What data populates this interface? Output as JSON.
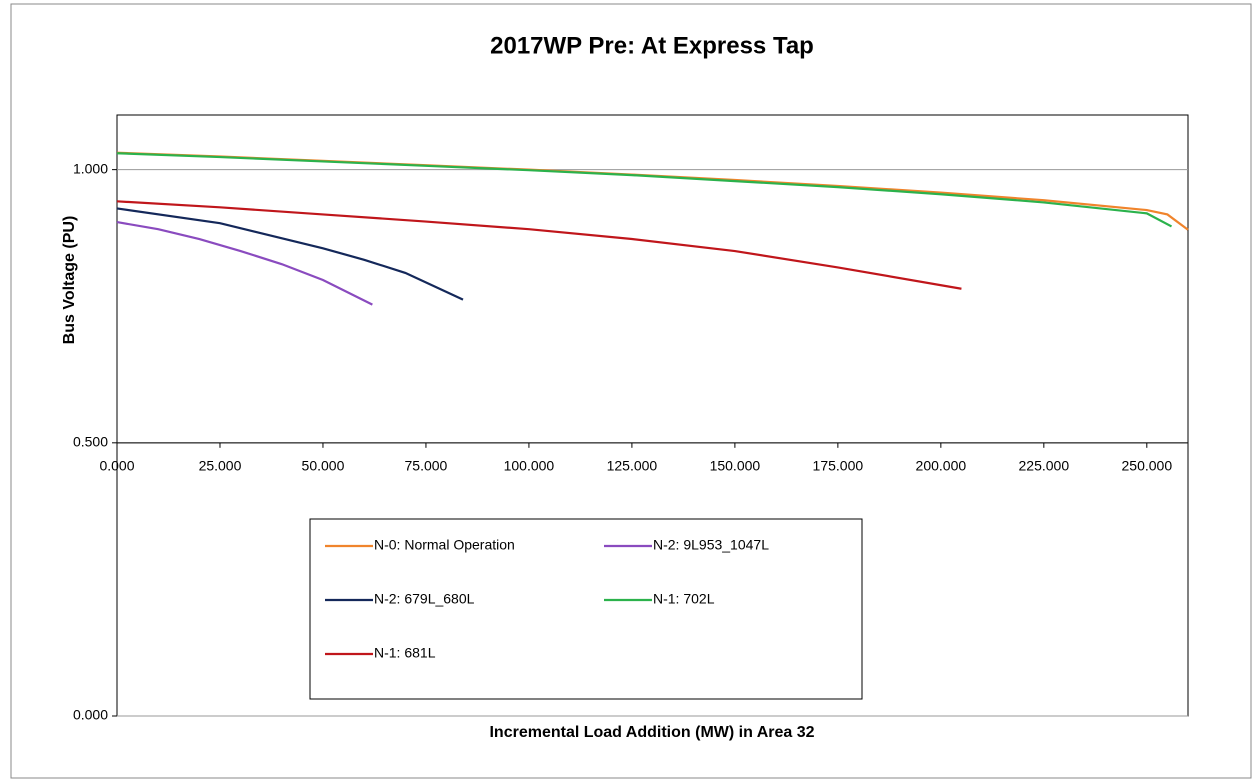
{
  "chart_data": {
    "type": "line",
    "title": "2017WP Pre: At Express Tap",
    "x_label": "Incremental Load Addition (MW) in Area 32",
    "y_label": "Bus Voltage (PU)",
    "xlim": [
      0,
      260
    ],
    "ylim": [
      0,
      1.1
    ],
    "xticks": [
      {
        "value": 0,
        "label": "0.000"
      },
      {
        "value": 25,
        "label": "25.000"
      },
      {
        "value": 50,
        "label": "50.000"
      },
      {
        "value": 75,
        "label": "75.000"
      },
      {
        "value": 100,
        "label": "100.000"
      },
      {
        "value": 125,
        "label": "125.000"
      },
      {
        "value": 150,
        "label": "150.000"
      },
      {
        "value": 175,
        "label": "175.000"
      },
      {
        "value": 200,
        "label": "200.000"
      },
      {
        "value": 225,
        "label": "225.000"
      },
      {
        "value": 250,
        "label": "250.000"
      }
    ],
    "yticks": [
      {
        "value": 0,
        "label": "0.000"
      },
      {
        "value": 0.5,
        "label": "0.500"
      },
      {
        "value": 1,
        "label": "1.000"
      }
    ],
    "x_axis_at": 0.5,
    "grid": true,
    "legend": "bottom",
    "series": [
      {
        "name": "N-0: Normal Operation",
        "color": "#f0842c",
        "x": [
          0,
          25,
          50,
          75,
          100,
          125,
          150,
          175,
          200,
          225,
          250,
          255,
          260
        ],
        "values": [
          1.031,
          1.024,
          1.016,
          1.008,
          1.0,
          0.991,
          0.981,
          0.97,
          0.958,
          0.944,
          0.926,
          0.918,
          0.89
        ]
      },
      {
        "name": "N-2: 9L953_1047L",
        "color": "#8a4bbf",
        "x": [
          0,
          10,
          20,
          30,
          40,
          50,
          62
        ],
        "values": [
          0.904,
          0.891,
          0.873,
          0.851,
          0.827,
          0.798,
          0.753
        ]
      },
      {
        "name": "N-2: 679L_680L",
        "color": "#14285a",
        "x": [
          0,
          25,
          50,
          60,
          70,
          84
        ],
        "values": [
          0.929,
          0.902,
          0.856,
          0.835,
          0.811,
          0.762
        ]
      },
      {
        "name": "N-1: 702L",
        "color": "#2bb24c",
        "x": [
          0,
          25,
          50,
          75,
          100,
          125,
          150,
          175,
          200,
          225,
          250,
          256
        ],
        "values": [
          1.03,
          1.023,
          1.015,
          1.007,
          0.999,
          0.99,
          0.979,
          0.968,
          0.955,
          0.94,
          0.92,
          0.896
        ]
      },
      {
        "name": "N-1: 681L",
        "color": "#c0161b",
        "x": [
          0,
          25,
          50,
          75,
          100,
          125,
          150,
          175,
          205
        ],
        "values": [
          0.942,
          0.931,
          0.918,
          0.905,
          0.891,
          0.873,
          0.851,
          0.821,
          0.782
        ]
      }
    ]
  }
}
